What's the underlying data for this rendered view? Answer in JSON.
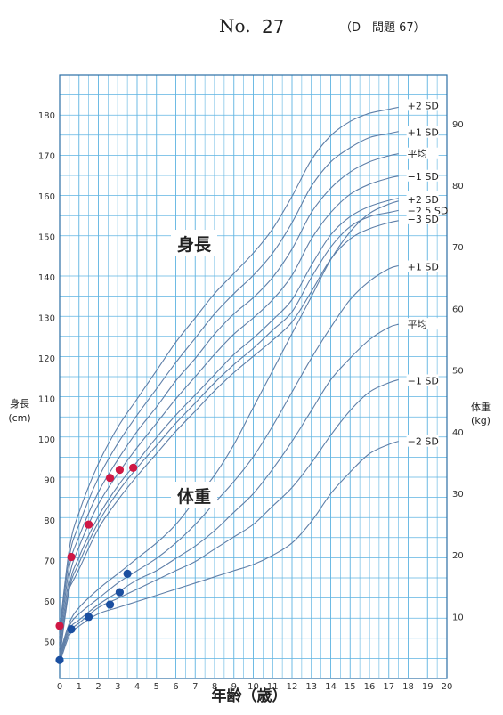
{
  "header": {
    "no_label": "No.",
    "number": "27",
    "problem": "（D　問題 67）"
  },
  "chart_data": {
    "type": "line",
    "x": {
      "label": "年齢（歳）",
      "range": [
        0,
        20
      ],
      "ticks": [
        0,
        1,
        2,
        3,
        4,
        5,
        6,
        7,
        8,
        9,
        10,
        11,
        12,
        13,
        14,
        15,
        16,
        17,
        18,
        19,
        20
      ]
    },
    "y_left": {
      "label": "身長",
      "unit": "(cm)",
      "range": [
        41,
        190
      ],
      "ticks": [
        50,
        60,
        70,
        80,
        90,
        100,
        110,
        120,
        130,
        140,
        150,
        160,
        170,
        180
      ]
    },
    "y_right": {
      "label": "体重",
      "unit": "(kg)",
      "range": [
        0,
        98
      ],
      "ticks": [
        10,
        20,
        30,
        40,
        50,
        60,
        70,
        80,
        90
      ]
    },
    "grid": true,
    "grid_color": "#5fb4e2",
    "curve_color": "#5f7fa8",
    "sections": {
      "height": "身長",
      "weight": "体重"
    },
    "height_curves": [
      {
        "name": "+2 SD",
        "axis": "height",
        "points": [
          [
            0,
            53
          ],
          [
            0.5,
            73
          ],
          [
            1,
            82
          ],
          [
            2,
            94
          ],
          [
            3,
            103
          ],
          [
            4,
            110
          ],
          [
            5,
            117
          ],
          [
            6,
            124
          ],
          [
            7,
            130
          ],
          [
            8,
            136
          ],
          [
            9,
            141
          ],
          [
            10,
            146
          ],
          [
            11,
            152
          ],
          [
            12,
            160
          ],
          [
            13,
            169
          ],
          [
            14,
            175
          ],
          [
            15,
            178.5
          ],
          [
            16,
            180.5
          ],
          [
            17,
            181.5
          ],
          [
            17.5,
            182
          ]
        ]
      },
      {
        "name": "+1 SD",
        "axis": "height",
        "points": [
          [
            0,
            51.5
          ],
          [
            0.5,
            71
          ],
          [
            1,
            79
          ],
          [
            2,
            90.5
          ],
          [
            3,
            99
          ],
          [
            4,
            106
          ],
          [
            5,
            112.5
          ],
          [
            6,
            119
          ],
          [
            7,
            125
          ],
          [
            8,
            131
          ],
          [
            9,
            136
          ],
          [
            10,
            140.5
          ],
          [
            11,
            146
          ],
          [
            12,
            153.5
          ],
          [
            13,
            162.5
          ],
          [
            14,
            168.5
          ],
          [
            15,
            172
          ],
          [
            16,
            174.5
          ],
          [
            17,
            175.5
          ],
          [
            17.5,
            176
          ]
        ]
      },
      {
        "name": "平均",
        "axis": "height",
        "points": [
          [
            0,
            50
          ],
          [
            0.5,
            68.5
          ],
          [
            1,
            76
          ],
          [
            2,
            87
          ],
          [
            3,
            95
          ],
          [
            4,
            102
          ],
          [
            5,
            108
          ],
          [
            6,
            114.5
          ],
          [
            7,
            120
          ],
          [
            8,
            126
          ],
          [
            9,
            131
          ],
          [
            10,
            135
          ],
          [
            11,
            140
          ],
          [
            12,
            147
          ],
          [
            13,
            156
          ],
          [
            14,
            162
          ],
          [
            15,
            166
          ],
          [
            16,
            168.5
          ],
          [
            17,
            170
          ],
          [
            17.5,
            170.5
          ]
        ]
      },
      {
        "name": "−1 SD",
        "axis": "height",
        "points": [
          [
            0,
            48.5
          ],
          [
            0.5,
            66
          ],
          [
            1,
            73.5
          ],
          [
            2,
            84
          ],
          [
            3,
            91.5
          ],
          [
            4,
            98
          ],
          [
            5,
            104
          ],
          [
            6,
            110
          ],
          [
            7,
            115.5
          ],
          [
            8,
            121
          ],
          [
            9,
            126
          ],
          [
            10,
            130
          ],
          [
            11,
            134.5
          ],
          [
            12,
            140.5
          ],
          [
            13,
            149.5
          ],
          [
            14,
            156
          ],
          [
            15,
            160.5
          ],
          [
            16,
            163
          ],
          [
            17,
            164.5
          ],
          [
            17.5,
            165
          ]
        ]
      },
      {
        "name": "−2 SD",
        "axis": "height",
        "points": [
          [
            0,
            47
          ],
          [
            0.5,
            64
          ],
          [
            1,
            71
          ],
          [
            2,
            81
          ],
          [
            3,
            88.5
          ],
          [
            4,
            94.5
          ],
          [
            5,
            100.5
          ],
          [
            6,
            106
          ],
          [
            7,
            111
          ],
          [
            8,
            116
          ],
          [
            9,
            121
          ],
          [
            10,
            125
          ],
          [
            11,
            129.5
          ],
          [
            12,
            134.5
          ],
          [
            13,
            143
          ],
          [
            14,
            150.5
          ],
          [
            15,
            155
          ],
          [
            16,
            157.5
          ],
          [
            17,
            159
          ],
          [
            17.5,
            159.5
          ]
        ]
      },
      {
        "name": "−2.5 SD",
        "axis": "height",
        "points": [
          [
            0,
            46
          ],
          [
            0.5,
            63
          ],
          [
            1,
            69.5
          ],
          [
            2,
            79.5
          ],
          [
            3,
            87
          ],
          [
            4,
            93
          ],
          [
            5,
            98.5
          ],
          [
            6,
            104
          ],
          [
            7,
            109
          ],
          [
            8,
            114
          ],
          [
            9,
            118.5
          ],
          [
            10,
            122.5
          ],
          [
            11,
            127
          ],
          [
            12,
            131.5
          ],
          [
            13,
            140
          ],
          [
            14,
            147.5
          ],
          [
            15,
            152.5
          ],
          [
            16,
            155
          ],
          [
            17,
            156
          ],
          [
            17.5,
            156.5
          ]
        ]
      },
      {
        "name": "−3 SD",
        "axis": "height",
        "points": [
          [
            0.4,
            62.5
          ],
          [
            1,
            68
          ],
          [
            2,
            78
          ],
          [
            3,
            85
          ],
          [
            4,
            91
          ],
          [
            5,
            96.5
          ],
          [
            6,
            102
          ],
          [
            7,
            107
          ],
          [
            8,
            112
          ],
          [
            9,
            116.5
          ],
          [
            10,
            120.5
          ],
          [
            11,
            124.5
          ],
          [
            12,
            129
          ],
          [
            13,
            136.5
          ],
          [
            14,
            144.5
          ],
          [
            15,
            149.5
          ],
          [
            16,
            152
          ],
          [
            17,
            153.5
          ],
          [
            17.5,
            154
          ]
        ]
      }
    ],
    "weight_curves": [
      {
        "name": "+2 SD",
        "axis": "weight",
        "points": [
          [
            0,
            4
          ],
          [
            0.5,
            9
          ],
          [
            1,
            11.5
          ],
          [
            2,
            14.5
          ],
          [
            3,
            17
          ],
          [
            4,
            19.5
          ],
          [
            5,
            22
          ],
          [
            6,
            25
          ],
          [
            7,
            29
          ],
          [
            8,
            33
          ],
          [
            9,
            38
          ],
          [
            10,
            44
          ],
          [
            11,
            50
          ],
          [
            12,
            56
          ],
          [
            13,
            62
          ],
          [
            14,
            68
          ],
          [
            15,
            72.5
          ],
          [
            16,
            75.5
          ],
          [
            17,
            77
          ],
          [
            17.5,
            77.5
          ]
        ]
      },
      {
        "name": "+1 SD",
        "axis": "weight",
        "points": [
          [
            0,
            3.6
          ],
          [
            0.5,
            8.5
          ],
          [
            1,
            10.5
          ],
          [
            2,
            13
          ],
          [
            3,
            15.5
          ],
          [
            4,
            17.5
          ],
          [
            5,
            19.5
          ],
          [
            6,
            22
          ],
          [
            7,
            25
          ],
          [
            8,
            28.5
          ],
          [
            9,
            32
          ],
          [
            10,
            36
          ],
          [
            11,
            41
          ],
          [
            12,
            46.5
          ],
          [
            13,
            52
          ],
          [
            14,
            57
          ],
          [
            15,
            61.5
          ],
          [
            16,
            64.5
          ],
          [
            17,
            66.5
          ],
          [
            17.5,
            67
          ]
        ]
      },
      {
        "name": "平均",
        "axis": "weight",
        "points": [
          [
            0,
            3.2
          ],
          [
            0.5,
            8
          ],
          [
            1,
            9.5
          ],
          [
            2,
            12
          ],
          [
            3,
            14
          ],
          [
            4,
            16
          ],
          [
            5,
            17.5
          ],
          [
            6,
            19.5
          ],
          [
            7,
            21.5
          ],
          [
            8,
            24
          ],
          [
            9,
            27
          ],
          [
            10,
            30
          ],
          [
            11,
            34
          ],
          [
            12,
            38.5
          ],
          [
            13,
            43.5
          ],
          [
            14,
            48.5
          ],
          [
            15,
            52
          ],
          [
            16,
            55
          ],
          [
            17,
            57
          ],
          [
            17.5,
            57.5
          ]
        ]
      },
      {
        "name": "−1 SD",
        "axis": "weight",
        "points": [
          [
            0,
            2.9
          ],
          [
            0.5,
            7.5
          ],
          [
            1,
            9
          ],
          [
            2,
            11.5
          ],
          [
            3,
            13
          ],
          [
            4,
            14.5
          ],
          [
            5,
            16
          ],
          [
            6,
            17.5
          ],
          [
            7,
            19
          ],
          [
            8,
            21
          ],
          [
            9,
            23
          ],
          [
            10,
            25
          ],
          [
            11,
            28
          ],
          [
            12,
            31
          ],
          [
            13,
            35
          ],
          [
            14,
            39.5
          ],
          [
            15,
            43.5
          ],
          [
            16,
            46.5
          ],
          [
            17,
            48
          ],
          [
            17.5,
            48.5
          ]
        ]
      },
      {
        "name": "−2 SD",
        "axis": "weight",
        "points": [
          [
            0,
            2.5
          ],
          [
            0.5,
            7
          ],
          [
            1,
            8.5
          ],
          [
            2,
            10.5
          ],
          [
            3,
            11.5
          ],
          [
            4,
            12.5
          ],
          [
            5,
            13.5
          ],
          [
            6,
            14.5
          ],
          [
            7,
            15.5
          ],
          [
            8,
            16.5
          ],
          [
            9,
            17.5
          ],
          [
            10,
            18.5
          ],
          [
            11,
            20
          ],
          [
            12,
            22
          ],
          [
            13,
            25.5
          ],
          [
            14,
            30
          ],
          [
            15,
            33.5
          ],
          [
            16,
            36.5
          ],
          [
            17,
            38
          ],
          [
            17.5,
            38.5
          ]
        ]
      }
    ],
    "height_points": [
      {
        "age": 0,
        "height": 54
      },
      {
        "age": 0.6,
        "height": 71
      },
      {
        "age": 1.5,
        "height": 79
      },
      {
        "age": 2.6,
        "height": 90.5
      },
      {
        "age": 3.1,
        "height": 92.5
      },
      {
        "age": 3.8,
        "height": 93
      }
    ],
    "weight_points": [
      {
        "age": 0,
        "weight": 3
      },
      {
        "age": 0.6,
        "weight": 8
      },
      {
        "age": 1.5,
        "weight": 10
      },
      {
        "age": 2.6,
        "weight": 12
      },
      {
        "age": 3.1,
        "weight": 14
      },
      {
        "age": 3.5,
        "weight": 17
      }
    ],
    "height_point_color": "#cf1744",
    "weight_point_color": "#1b4fa0"
  }
}
